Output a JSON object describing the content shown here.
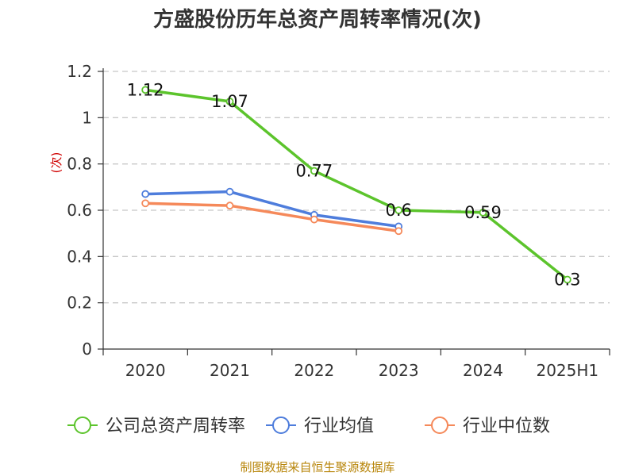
{
  "title": "方盛股份历年总资产周转率情况(次)",
  "source": "制图数据来自恒生聚源数据库",
  "chart_data": {
    "type": "line",
    "title": "方盛股份历年总资产周转率情况(次)",
    "ylabel": "(次)",
    "xlabel": "",
    "categories": [
      "2020",
      "2021",
      "2022",
      "2023",
      "2024",
      "2025H1"
    ],
    "y_ticks": [
      "0",
      "0.2",
      "0.4",
      "0.6",
      "0.8",
      "1",
      "1.2"
    ],
    "ylim": [
      0,
      1.2
    ],
    "grid": true,
    "legend_position": "bottom",
    "series": [
      {
        "name": "公司总资产周转率",
        "color": "#5cc42c",
        "values": [
          1.12,
          1.07,
          0.77,
          0.6,
          0.59,
          0.3
        ],
        "labels": [
          "1.12",
          "1.07",
          "0.77",
          "0.6",
          "0.59",
          "0.3"
        ],
        "show_labels": true
      },
      {
        "name": "行业均值",
        "color": "#4e7ddc",
        "values": [
          0.67,
          0.68,
          0.58,
          0.53,
          null,
          null
        ],
        "show_labels": false
      },
      {
        "name": "行业中位数",
        "color": "#f5895a",
        "values": [
          0.63,
          0.62,
          0.56,
          0.51,
          null,
          null
        ],
        "show_labels": false
      }
    ]
  }
}
